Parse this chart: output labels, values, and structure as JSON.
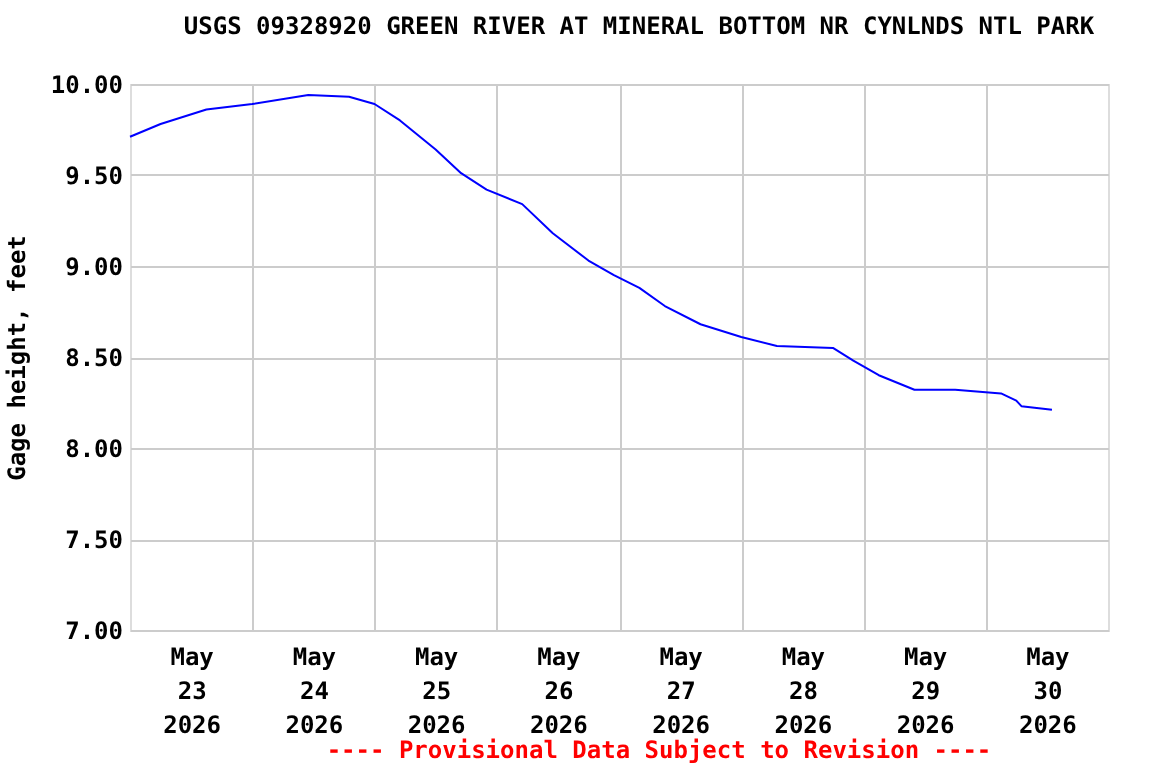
{
  "chart_data": {
    "type": "line",
    "title": "USGS 09328920 GREEN RIVER AT MINERAL BOTTOM NR CYNLNDS NTL PARK",
    "ylabel": "Gage height, feet",
    "annotations": [
      "---- Provisional Data Subject to Revision ----"
    ],
    "x": [
      "2026-05-23T00:00",
      "2026-05-23T06:00",
      "2026-05-23T15:00",
      "2026-05-24T00:00",
      "2026-05-24T11:00",
      "2026-05-24T19:00",
      "2026-05-25T00:00",
      "2026-05-25T05:00",
      "2026-05-25T12:00",
      "2026-05-25T17:00",
      "2026-05-25T22:00",
      "2026-05-26T05:00",
      "2026-05-26T11:00",
      "2026-05-26T18:00",
      "2026-05-26T23:00",
      "2026-05-27T04:00",
      "2026-05-27T09:00",
      "2026-05-27T16:00",
      "2026-05-28T00:00",
      "2026-05-28T07:00",
      "2026-05-28T18:00",
      "2026-05-28T22:00",
      "2026-05-29T03:00",
      "2026-05-29T10:00",
      "2026-05-29T18:00",
      "2026-05-30T03:00",
      "2026-05-30T06:00",
      "2026-05-30T07:00",
      "2026-05-30T13:00"
    ],
    "series": [
      {
        "color": "#0000ff",
        "values": [
          9.71,
          9.78,
          9.86,
          9.89,
          9.94,
          9.93,
          9.89,
          9.8,
          9.64,
          9.51,
          9.42,
          9.34,
          9.18,
          9.03,
          8.95,
          8.88,
          8.78,
          8.68,
          8.61,
          8.56,
          8.55,
          8.48,
          8.4,
          8.32,
          8.32,
          8.3,
          8.26,
          8.23,
          8.21
        ]
      }
    ],
    "xlim": [
      "2026-05-23T00:00",
      "2026-05-31T00:00"
    ],
    "xticks": [
      {
        "value": "2026-05-23T12:00",
        "label": "May\n23\n2026"
      },
      {
        "value": "2026-05-24T00:00",
        "label": null
      },
      {
        "value": "2026-05-24T12:00",
        "label": "May\n24\n2026"
      },
      {
        "value": "2026-05-25T00:00",
        "label": null
      },
      {
        "value": "2026-05-25T12:00",
        "label": "May\n25\n2026"
      },
      {
        "value": "2026-05-26T00:00",
        "label": null
      },
      {
        "value": "2026-05-26T12:00",
        "label": "May\n26\n2026"
      },
      {
        "value": "2026-05-27T00:00",
        "label": null
      },
      {
        "value": "2026-05-27T12:00",
        "label": "May\n27\n2026"
      },
      {
        "value": "2026-05-28T00:00",
        "label": null
      },
      {
        "value": "2026-05-28T12:00",
        "label": "May\n28\n2026"
      },
      {
        "value": "2026-05-29T00:00",
        "label": null
      },
      {
        "value": "2026-05-29T12:00",
        "label": "May\n29\n2026"
      },
      {
        "value": "2026-05-30T00:00",
        "label": null
      },
      {
        "value": "2026-05-30T12:00",
        "label": "May\n30\n2026"
      }
    ],
    "ylim": [
      7,
      10
    ],
    "yticks": [
      {
        "value": 7,
        "label": "7.00"
      },
      {
        "value": 7.5,
        "label": "7.50"
      },
      {
        "value": 8,
        "label": "8.00"
      },
      {
        "value": 8.5,
        "label": "8.50"
      },
      {
        "value": 9,
        "label": "9.00"
      },
      {
        "value": 9.5,
        "label": "9.50"
      },
      {
        "value": 10,
        "label": "10.00"
      }
    ],
    "grid": true,
    "marker": "none",
    "line_style": "solid"
  }
}
